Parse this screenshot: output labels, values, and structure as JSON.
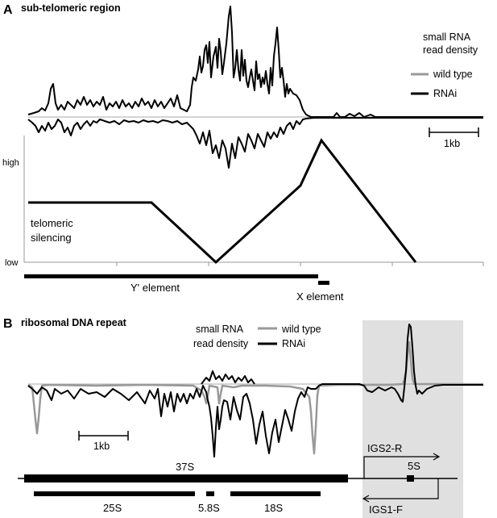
{
  "panel_a": {
    "letter": "A",
    "title": "sub-telomeric region",
    "legend": {
      "title_line1": "small RNA",
      "title_line2": "read density",
      "items": [
        {
          "label": "wild type",
          "color": "#999999"
        },
        {
          "label": "RNAi",
          "color": "#000000"
        }
      ]
    },
    "scale_bar_label": "1kb",
    "silencing": {
      "label_line1": "telomeric",
      "label_line2": "silencing",
      "y_high_label": "high",
      "y_low_label": "low"
    },
    "elements": {
      "y_prime": "Y' element",
      "x": "X element"
    }
  },
  "panel_b": {
    "letter": "B",
    "title": "ribosomal DNA repeat",
    "legend": {
      "title_line1": "small RNA",
      "title_line2": "read density",
      "items": [
        {
          "label": "wild type",
          "color": "#999999"
        },
        {
          "label": "RNAi",
          "color": "#000000"
        }
      ]
    },
    "scale_bar_label": "1kb",
    "highlight_color": "#e0e0e0",
    "genes": {
      "g37s": "37S",
      "g25s": "25S",
      "g58s": "5.8S",
      "g18s": "18S",
      "g5s": "5S"
    },
    "primers": {
      "igs2r": "IGS2-R",
      "igs1f": "IGS1-F"
    }
  }
}
